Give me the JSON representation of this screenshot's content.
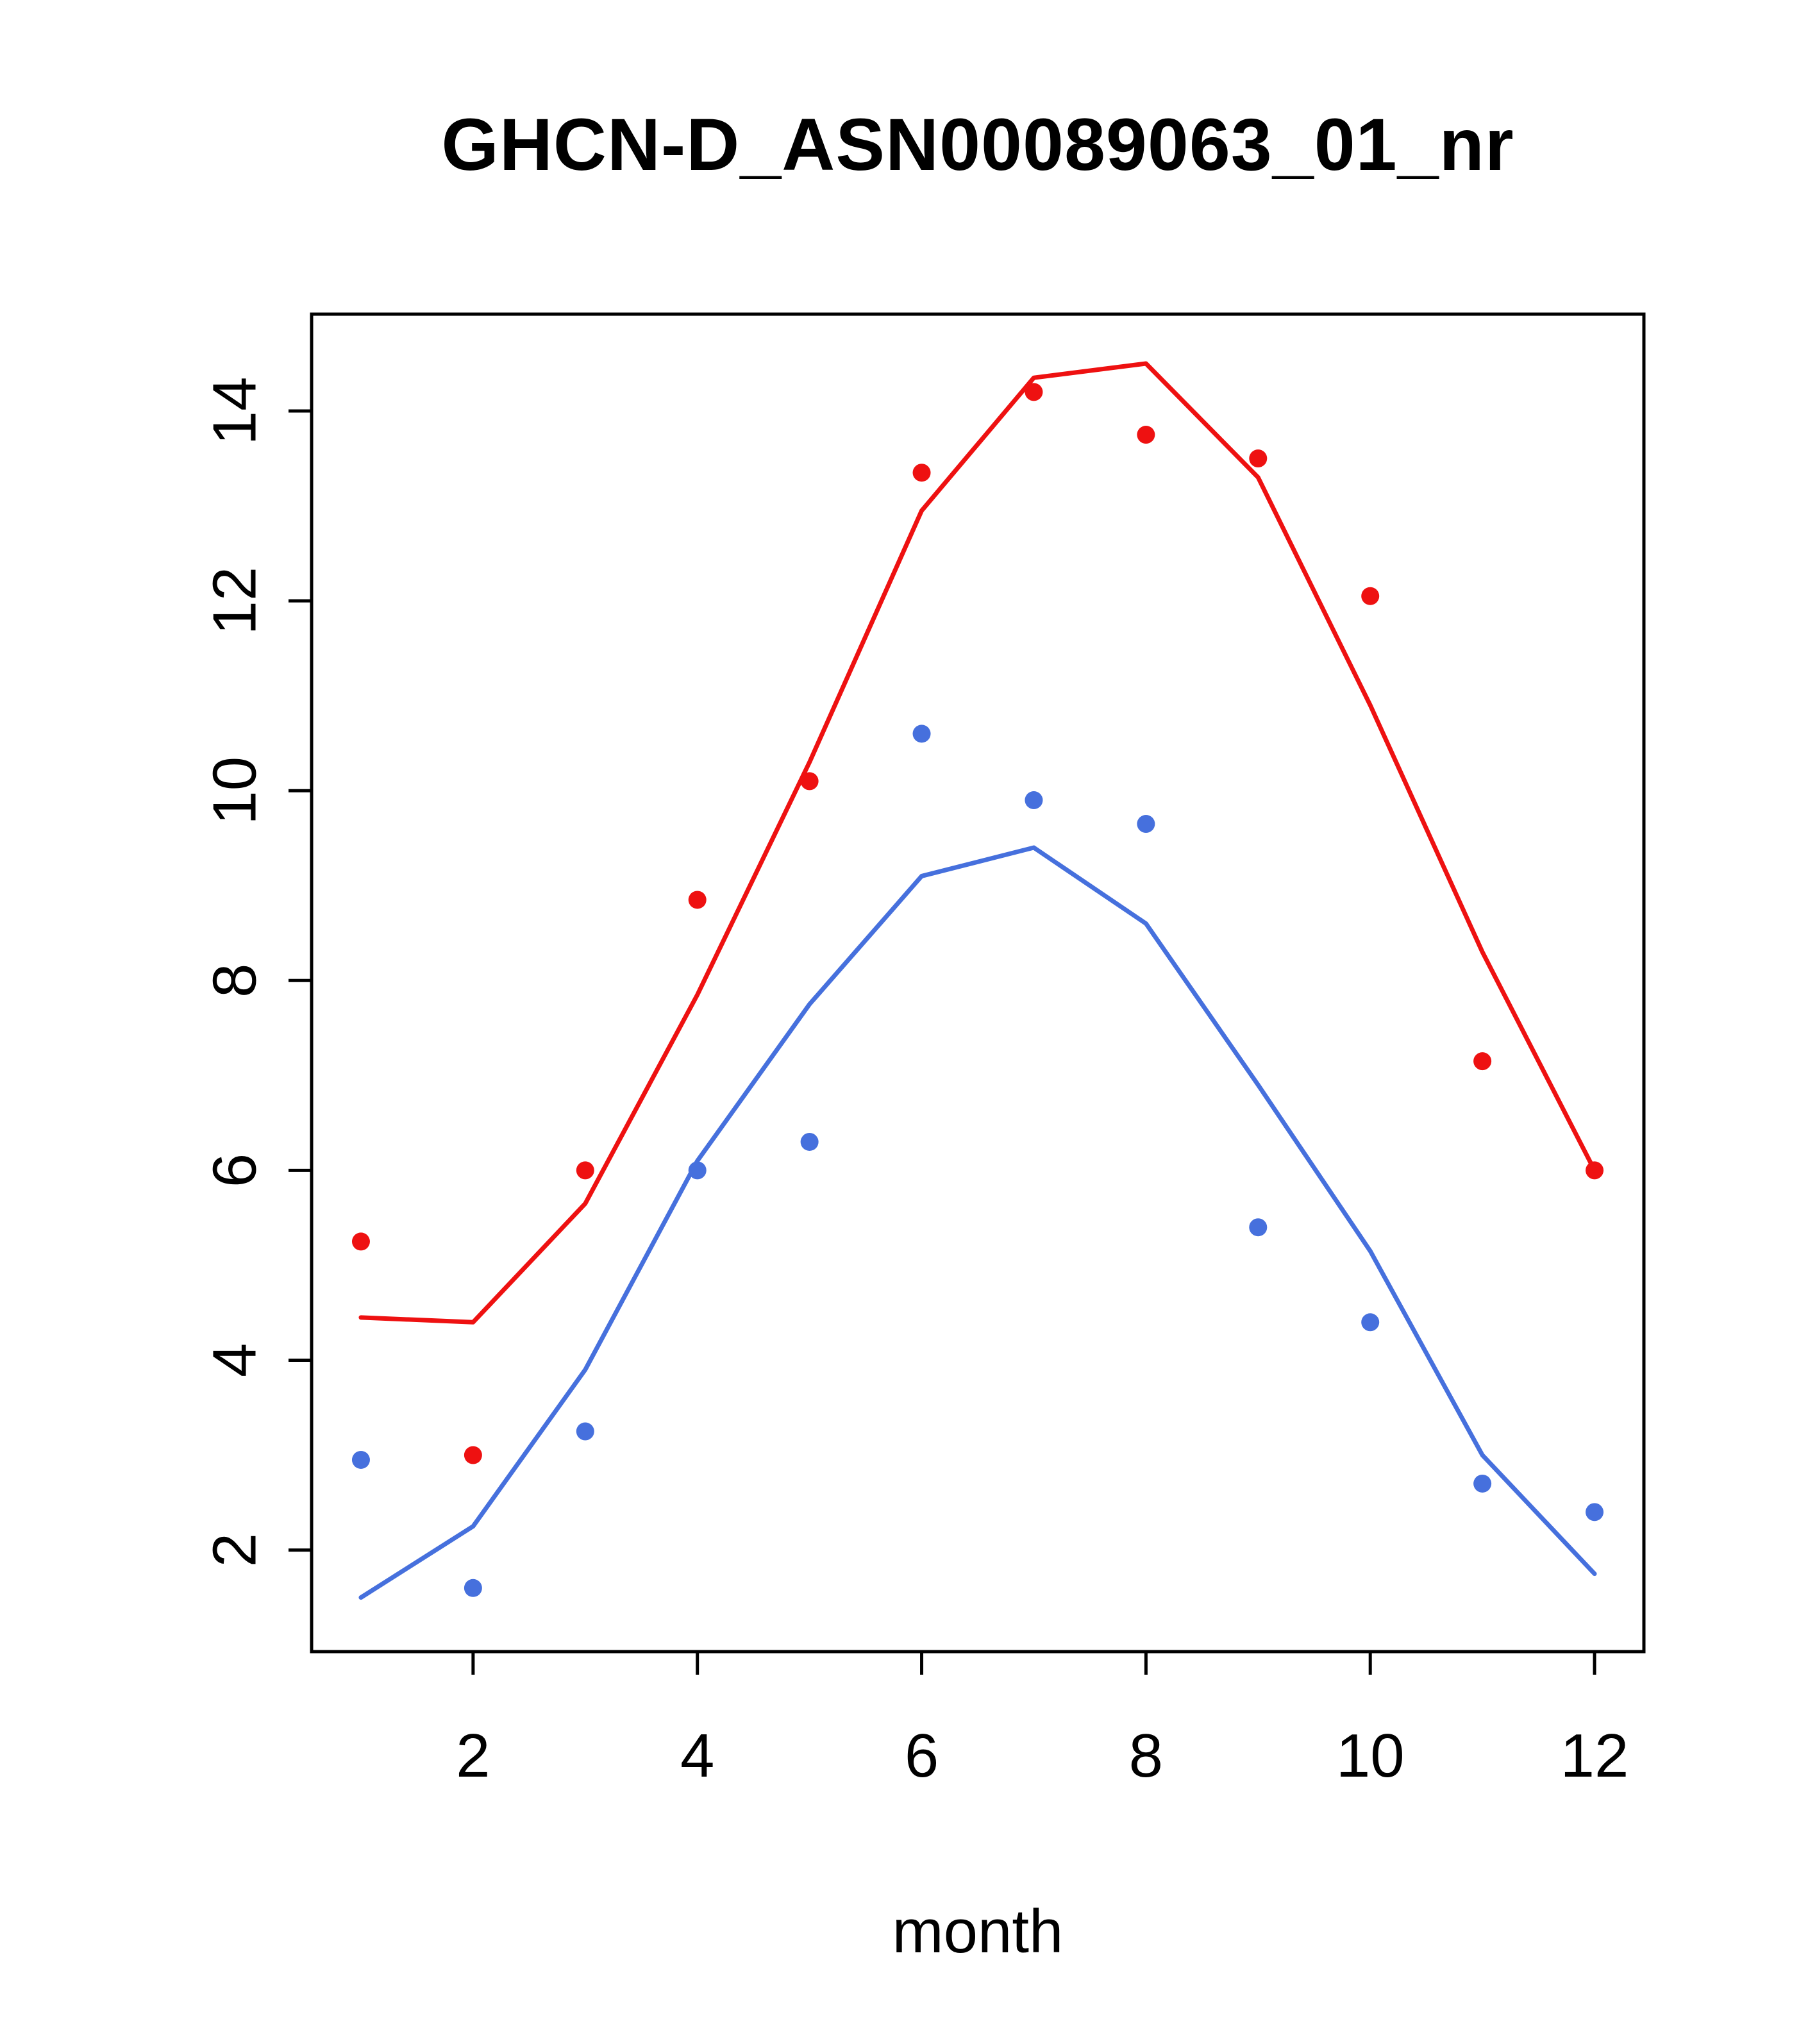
{
  "figure": {
    "background": "#ffffff",
    "axis_color": "#000000"
  },
  "chart_data": {
    "type": "line",
    "title": "GHCN-D_ASN00089063_01_nr",
    "xlabel": "month",
    "ylabel": "",
    "x": [
      1,
      2,
      3,
      4,
      5,
      6,
      7,
      8,
      9,
      10,
      11,
      12
    ],
    "xlim": [
      0.56,
      12.44
    ],
    "ylim": [
      0.93,
      15.02
    ],
    "x_ticks": [
      2,
      4,
      6,
      8,
      10,
      12
    ],
    "y_ticks": [
      2,
      4,
      6,
      8,
      10,
      12,
      14
    ],
    "grid": false,
    "legend": "none",
    "series": [
      {
        "name": "red-observed-points",
        "kind": "scatter",
        "color": "#ee1111",
        "values": [
          5.25,
          3.0,
          6.0,
          8.85,
          10.1,
          13.35,
          14.2,
          13.75,
          13.5,
          12.05,
          7.15,
          6.0
        ]
      },
      {
        "name": "red-fitted-line",
        "kind": "line",
        "color": "#ee1111",
        "values": [
          4.45,
          4.4,
          5.65,
          7.85,
          10.3,
          12.95,
          14.35,
          14.5,
          13.3,
          10.9,
          8.3,
          6.0
        ]
      },
      {
        "name": "blue-observed-points",
        "kind": "scatter",
        "color": "#4670dd",
        "values": [
          2.95,
          1.6,
          3.25,
          6.0,
          6.3,
          10.6,
          9.9,
          9.65,
          5.4,
          4.4,
          2.7,
          2.4
        ]
      },
      {
        "name": "blue-fitted-line",
        "kind": "line",
        "color": "#4670dd",
        "values": [
          1.5,
          2.25,
          3.9,
          6.1,
          7.75,
          9.1,
          9.4,
          8.6,
          6.9,
          5.15,
          3.0,
          1.75
        ]
      }
    ]
  }
}
